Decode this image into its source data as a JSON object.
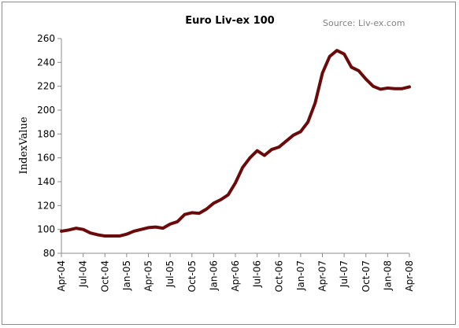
{
  "chart_data": {
    "type": "line",
    "title": "Euro Liv-ex 100",
    "source": "Source: Liv-ex.com",
    "xlabel": "",
    "ylabel": "IndexValue",
    "ylim": [
      80,
      260
    ],
    "yticks": [
      80,
      100,
      120,
      140,
      160,
      180,
      200,
      220,
      240,
      260
    ],
    "grid": false,
    "legend": "none",
    "x_tick_labels": [
      "Apr-04",
      "Jul-04",
      "Oct-04",
      "Jan-05",
      "Apr-05",
      "Jul-05",
      "Oct-05",
      "Jan-06",
      "Apr-06",
      "Jul-06",
      "Oct-06",
      "Jan-07",
      "Apr-07",
      "Jul-07",
      "Oct-07",
      "Jan-08",
      "Apr-08"
    ],
    "x_tick_month_index": [
      0,
      3,
      6,
      9,
      12,
      15,
      18,
      21,
      24,
      27,
      30,
      33,
      36,
      39,
      42,
      45,
      48
    ],
    "series": [
      {
        "color": "#6b0a0a",
        "month_index": [
          0,
          1,
          2,
          3,
          4,
          5,
          6,
          7,
          8,
          9,
          10,
          11,
          12,
          13,
          14,
          15,
          16,
          17,
          18,
          19,
          20,
          21,
          22,
          23,
          24,
          25,
          26,
          27,
          28,
          29,
          30,
          31,
          32,
          33,
          34,
          35,
          36,
          37,
          38,
          39,
          40,
          41,
          42,
          43,
          44,
          45,
          46,
          47,
          48
        ],
        "values": [
          98.5,
          99.5,
          101,
          100,
          97,
          95.5,
          94.5,
          94.5,
          94.5,
          96,
          98.5,
          100,
          101.5,
          102,
          101,
          104.5,
          106.5,
          112.5,
          114,
          113.5,
          117,
          122,
          125,
          129,
          139,
          152,
          160,
          166,
          162,
          167,
          169,
          174,
          179,
          182,
          190,
          206,
          231,
          245,
          250,
          247,
          236,
          233,
          226,
          220,
          217.5,
          218.5,
          218,
          218,
          219.5
        ]
      }
    ]
  }
}
